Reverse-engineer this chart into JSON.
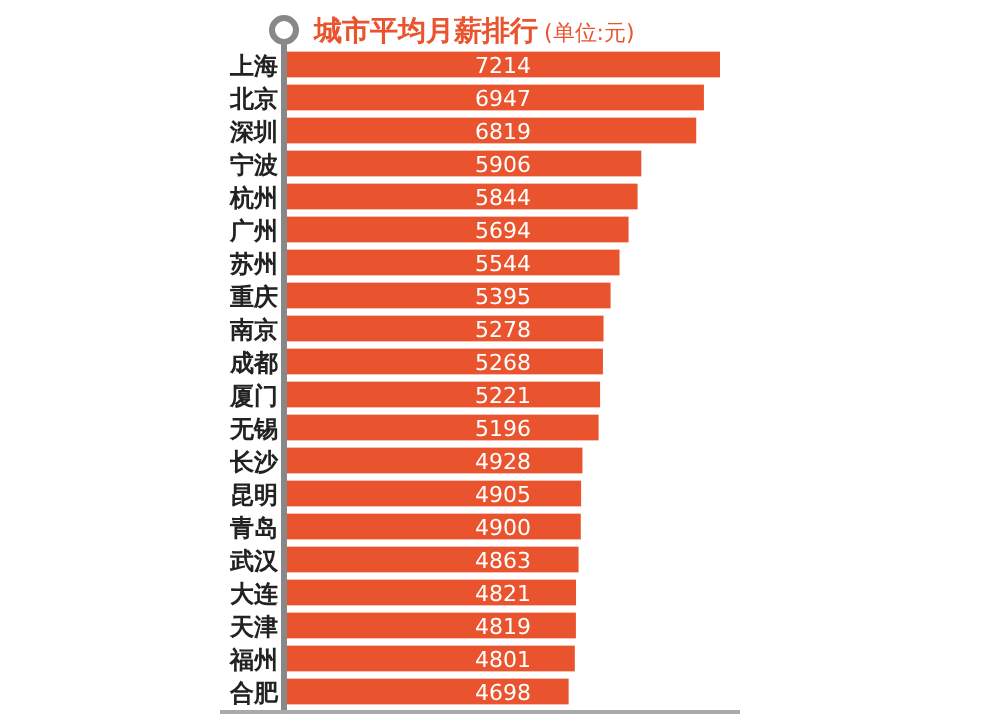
{
  "chart_data": {
    "type": "bar",
    "orientation": "horizontal",
    "title": "城市平均月薪排行",
    "subtitle": "(单位:元)",
    "categories": [
      "上海",
      "北京",
      "深圳",
      "宁波",
      "杭州",
      "广州",
      "苏州",
      "重庆",
      "南京",
      "成都",
      "厦门",
      "无锡",
      "长沙",
      "昆明",
      "青岛",
      "武汉",
      "大连",
      "天津",
      "福州",
      "合肥"
    ],
    "values": [
      7214,
      6947,
      6819,
      5906,
      5844,
      5694,
      5544,
      5395,
      5278,
      5268,
      5221,
      5196,
      4928,
      4905,
      4900,
      4863,
      4821,
      4819,
      4801,
      4698
    ],
    "color": "#e9542e",
    "data_labels": true
  }
}
